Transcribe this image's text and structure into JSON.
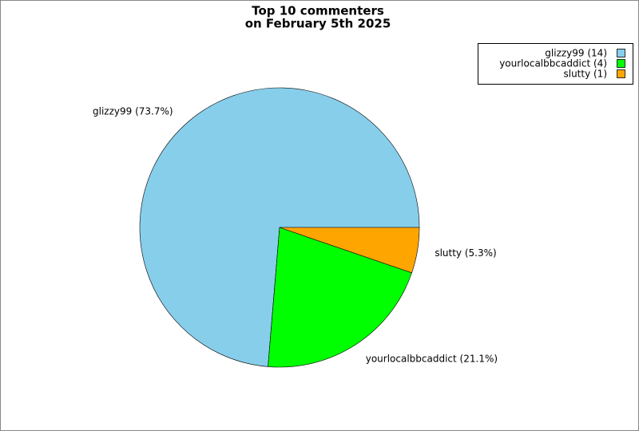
{
  "chart_data": {
    "type": "pie",
    "title": [
      "Top 10 commenters",
      "on February 5th 2025"
    ],
    "categories": [
      "glizzy99",
      "yourlocalbbcaddict",
      "slutty"
    ],
    "values": [
      14,
      4,
      1
    ],
    "value_labels": [
      "glizzy99 (73.7%)",
      "yourlocalbbcaddict (21.1%)",
      "slutty (5.3%)"
    ],
    "legend_labels": [
      "glizzy99 (14)",
      "yourlocalbbcaddict (4)",
      "slutty (1)"
    ],
    "colors": [
      "#87ceeb",
      "#00ff00",
      "#ffa500"
    ],
    "legend": "upper right"
  }
}
